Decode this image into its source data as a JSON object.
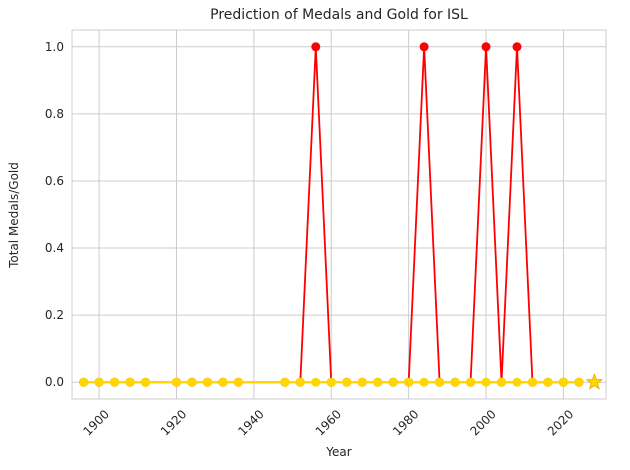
{
  "chart_data": {
    "type": "line",
    "title": "Prediction of Medals and Gold for ISL",
    "xlabel": "Year",
    "ylabel": "Total Medals/Gold",
    "xlim": [
      1893,
      2031
    ],
    "ylim": [
      -0.05,
      1.05
    ],
    "x_ticks": [
      1900,
      1920,
      1940,
      1960,
      1980,
      2000,
      2020
    ],
    "y_ticks": [
      0.0,
      0.2,
      0.4,
      0.6,
      0.8,
      1.0
    ],
    "grid": true,
    "legend": "none",
    "series": [
      {
        "color": "#ff0000",
        "marker": "circle",
        "x": [
          1896,
          1900,
          1904,
          1908,
          1912,
          1920,
          1924,
          1928,
          1932,
          1936,
          1948,
          1952,
          1956,
          1960,
          1964,
          1968,
          1972,
          1976,
          1980,
          1984,
          1988,
          1992,
          1996,
          2000,
          2004,
          2008,
          2012,
          2016,
          2020,
          2024
        ],
        "y": [
          0,
          0,
          0,
          0,
          0,
          0,
          0,
          0,
          0,
          0,
          0,
          0,
          1,
          0,
          0,
          0,
          0,
          0,
          0,
          1,
          0,
          0,
          0,
          1,
          0,
          1,
          0,
          0,
          0,
          0
        ]
      },
      {
        "color": "#ffd700",
        "marker": "circle",
        "x": [
          1896,
          1900,
          1904,
          1908,
          1912,
          1920,
          1924,
          1928,
          1932,
          1936,
          1948,
          1952,
          1956,
          1960,
          1964,
          1968,
          1972,
          1976,
          1980,
          1984,
          1988,
          1992,
          1996,
          2000,
          2004,
          2008,
          2012,
          2016,
          2020,
          2024
        ],
        "y": [
          0,
          0,
          0,
          0,
          0,
          0,
          0,
          0,
          0,
          0,
          0,
          0,
          0,
          0,
          0,
          0,
          0,
          0,
          0,
          0,
          0,
          0,
          0,
          0,
          0,
          0,
          0,
          0,
          0,
          0
        ]
      }
    ],
    "prediction": {
      "x": 2028,
      "y": 0,
      "marker": "star",
      "color": "#ffd700"
    }
  }
}
